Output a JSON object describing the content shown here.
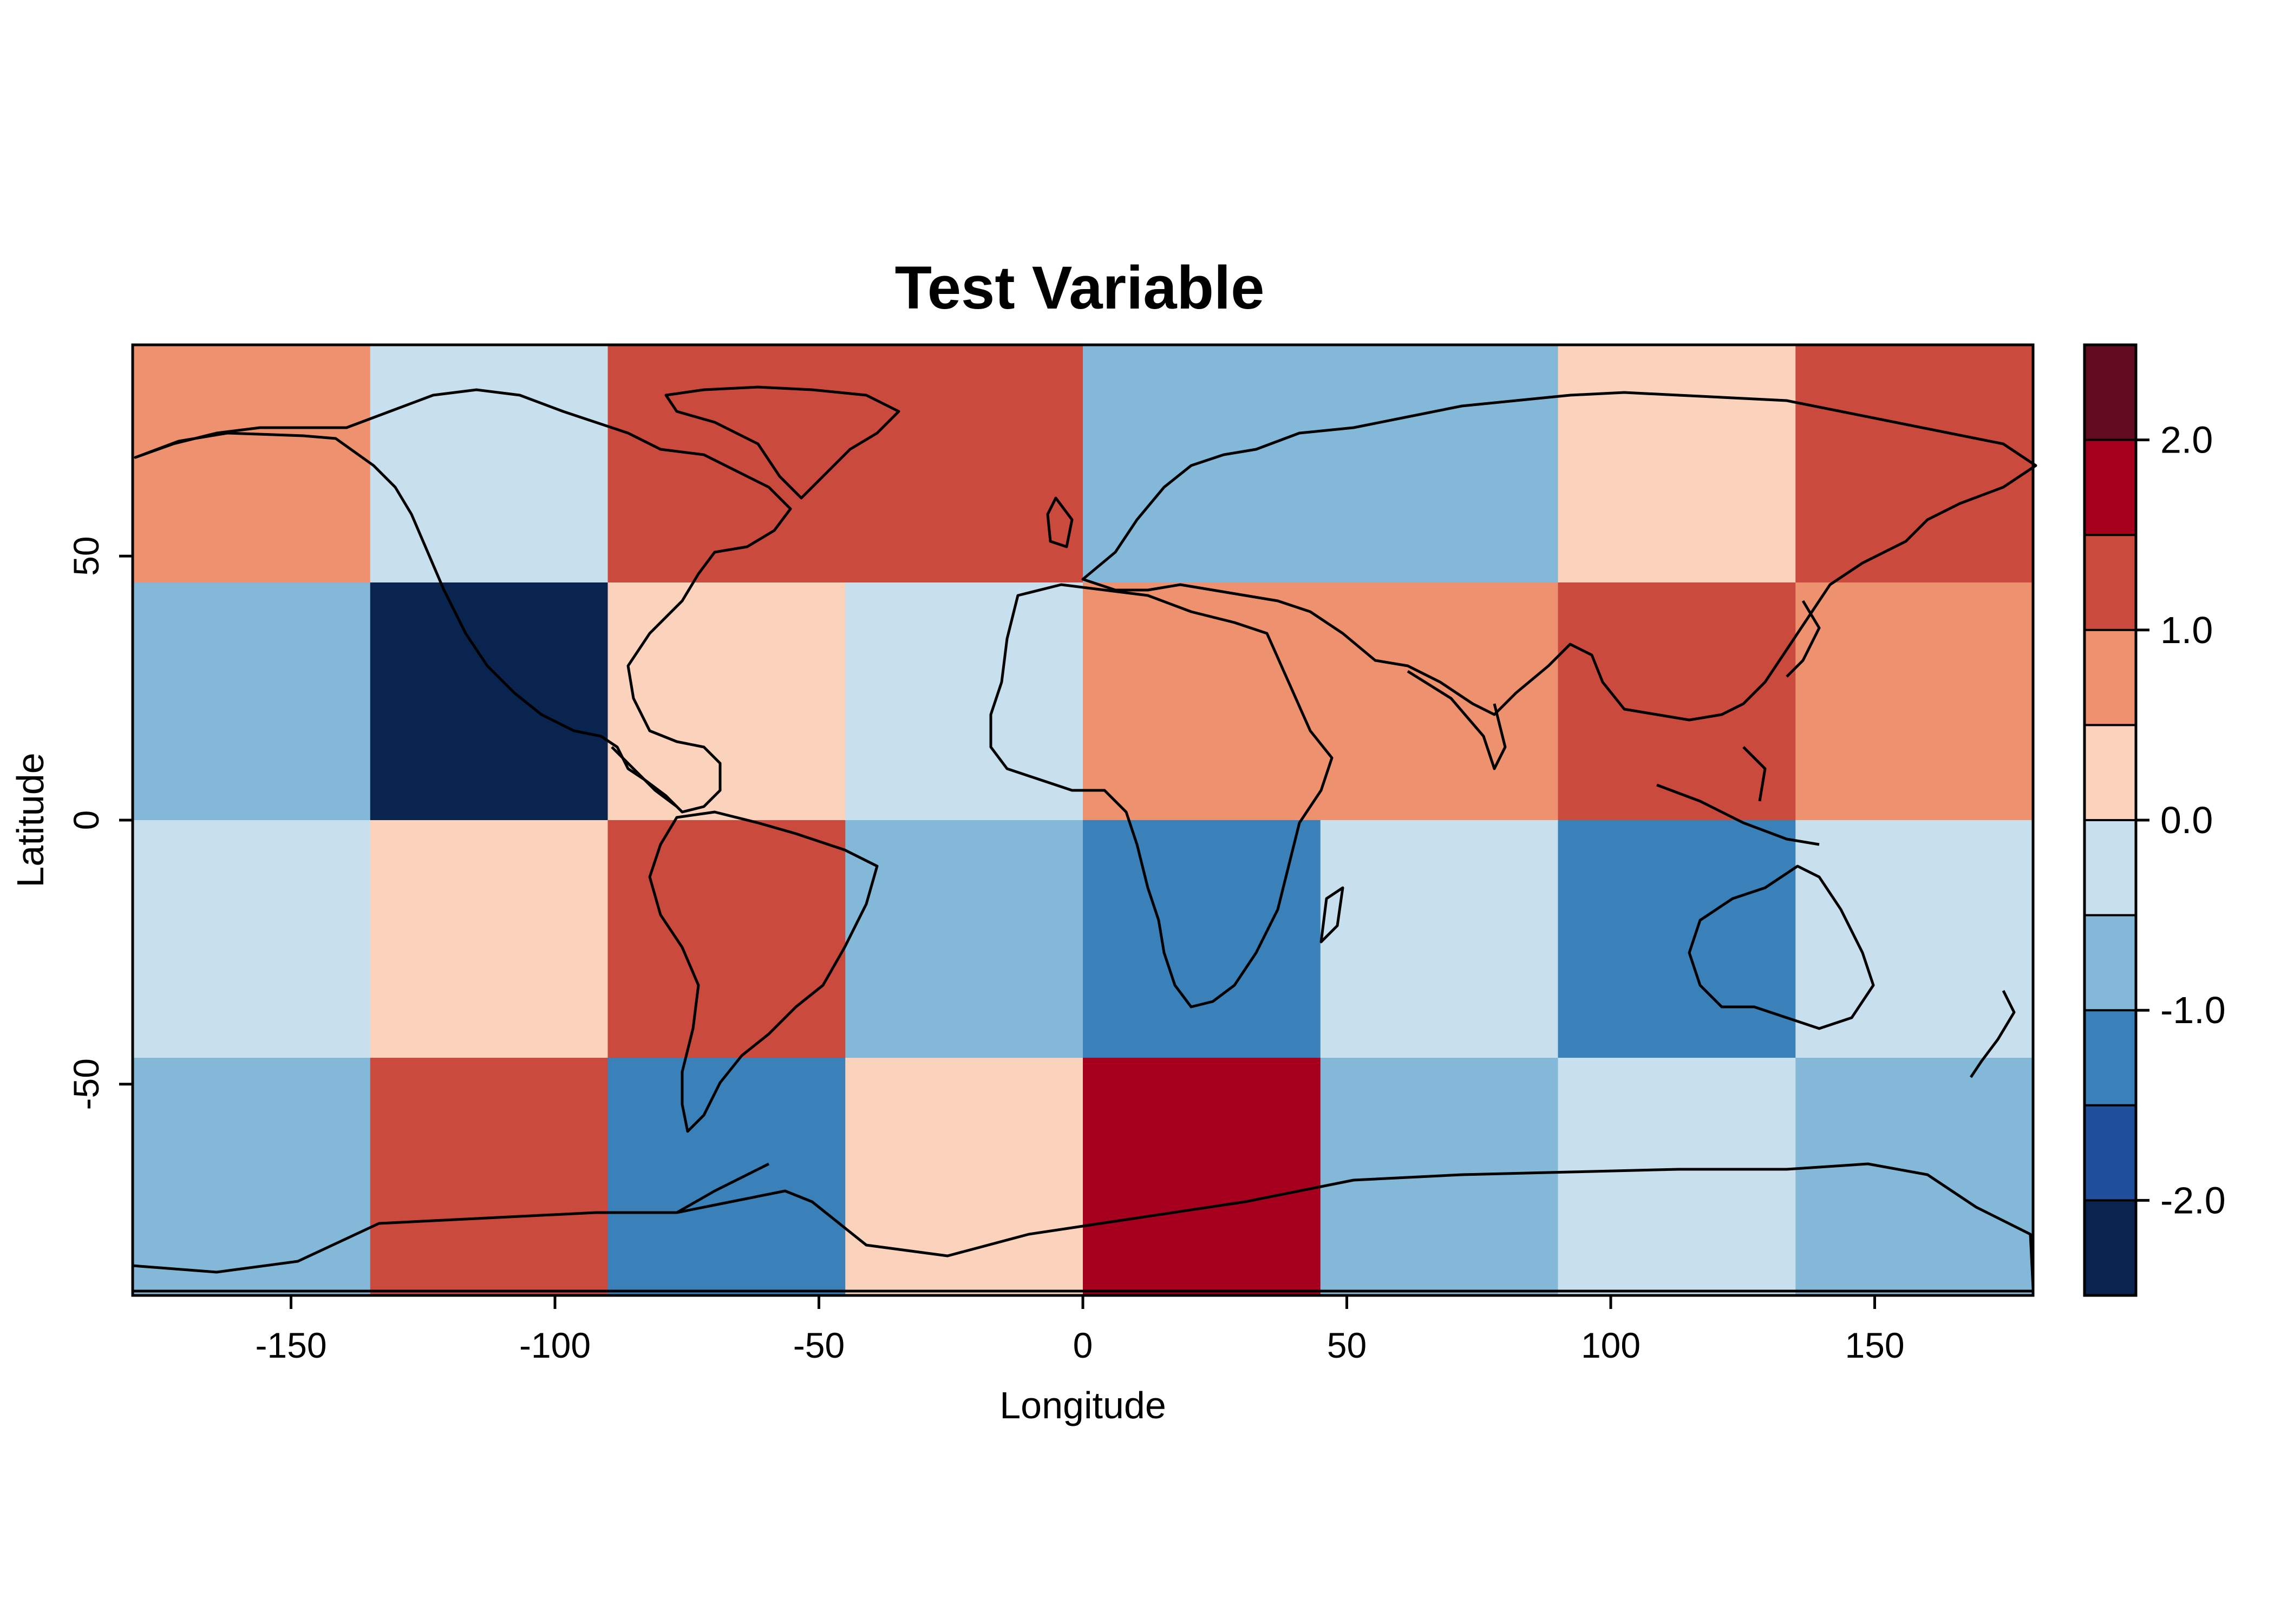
{
  "chart_data": {
    "type": "heatmap",
    "title": "Test Variable",
    "xlabel": "Longitude",
    "ylabel": "Latitude",
    "xlim": [
      -180,
      180
    ],
    "ylim": [
      -90,
      90
    ],
    "x_ticks": [
      -150,
      -100,
      -50,
      0,
      50,
      100,
      150
    ],
    "x_tick_labels": [
      "-150",
      "-100",
      "-50",
      "0",
      "50",
      "100",
      "150"
    ],
    "y_ticks": [
      50,
      0,
      -50
    ],
    "y_tick_labels": [
      "50",
      "0",
      "-50"
    ],
    "x_edges": [
      -180,
      -135,
      -90,
      -45,
      0,
      45,
      90,
      135,
      180
    ],
    "y_edges": [
      90,
      45,
      0,
      -45,
      -90
    ],
    "cells": [
      [
        0.75,
        -0.25,
        1.25,
        1.25,
        -0.75,
        -0.75,
        0.25,
        1.25
      ],
      [
        -0.75,
        -2.25,
        0.25,
        -0.25,
        0.75,
        0.75,
        1.25,
        0.75
      ],
      [
        -0.25,
        0.25,
        1.25,
        -0.75,
        -1.25,
        -0.25,
        -1.25,
        -0.25
      ],
      [
        -0.75,
        1.25,
        -1.25,
        0.25,
        1.75,
        -0.75,
        -0.25,
        -0.75
      ]
    ],
    "colorbar": {
      "breaks": [
        -2.5,
        -2.0,
        -1.5,
        -1.0,
        -0.5,
        0.0,
        0.5,
        1.0,
        1.5,
        2.0,
        2.5
      ],
      "colors": [
        "#08244f",
        "#1f4f9b",
        "#3a80b9",
        "#84b8d8",
        "#c8dfee",
        "#fbd3bd",
        "#ee916e",
        "#ca4a3e",
        "#a7001e",
        "#620b1e"
      ],
      "tick_values": [
        2.0,
        1.0,
        0.0,
        -1.0,
        -2.0
      ],
      "tick_labels": [
        "2.0",
        "1.0",
        "0.0",
        "-1.0",
        "-2.0"
      ]
    },
    "overlay": "world country outlines"
  }
}
